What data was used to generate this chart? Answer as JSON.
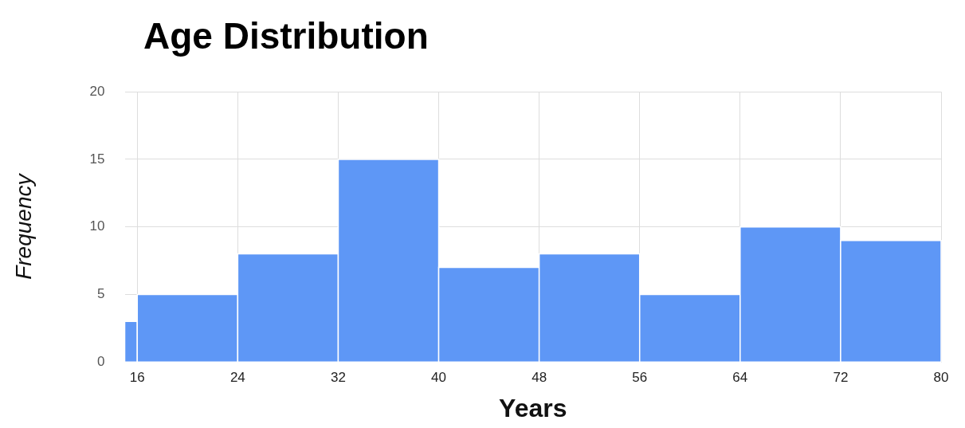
{
  "chart_data": {
    "type": "histogram",
    "title": "Age Distribution",
    "xlabel": "Years",
    "ylabel": "Frequency",
    "bins": [
      15,
      16,
      24,
      32,
      40,
      48,
      56,
      64,
      72,
      80
    ],
    "values": [
      3,
      5,
      8,
      15,
      7,
      8,
      5,
      10,
      9
    ],
    "color": "#5e97f6",
    "xlim": [
      15,
      80
    ],
    "xticks": [
      16,
      24,
      32,
      40,
      48,
      56,
      64,
      72,
      80
    ],
    "ylim": [
      0,
      20
    ],
    "yticks": [
      0,
      5,
      10,
      15,
      20
    ],
    "grid": true,
    "legend": false
  }
}
